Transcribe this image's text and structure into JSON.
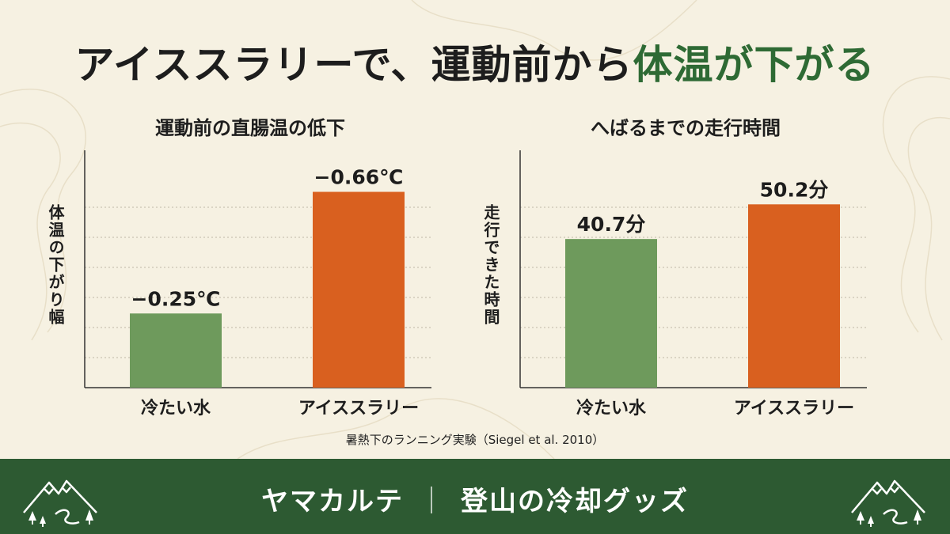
{
  "headline": {
    "prefix": "アイススラリーで、運動前から",
    "accent": "体温が下がる"
  },
  "chart_data": [
    {
      "type": "bar",
      "title": "運動前の直腸温の低下",
      "ylabel": "体温の下がり幅",
      "categories": [
        "冷たい水",
        "アイススラリー"
      ],
      "values": [
        -0.25,
        -0.66
      ],
      "value_labels": [
        "−0.25℃",
        "−0.66℃"
      ],
      "unit": "℃",
      "ylim": [
        0,
        0.8
      ],
      "grid": true,
      "colors": [
        "#6e9a5c",
        "#d9601f"
      ]
    },
    {
      "type": "bar",
      "title": "へばるまでの走行時間",
      "ylabel": "走行できた時間",
      "categories": [
        "冷たい水",
        "アイススラリー"
      ],
      "values": [
        40.7,
        50.2
      ],
      "value_labels": [
        "40.7分",
        "50.2分"
      ],
      "unit": "分",
      "ylim": [
        0,
        65
      ],
      "grid": true,
      "colors": [
        "#6e9a5c",
        "#d9601f"
      ]
    }
  ],
  "source": "暑熱下のランニング実験（Siegel et al. 2010）",
  "footer": {
    "brand": "ヤマカルテ",
    "separator": "｜",
    "topic": "登山の冷却グッズ"
  },
  "icons": [
    "mountain-logo-icon"
  ]
}
